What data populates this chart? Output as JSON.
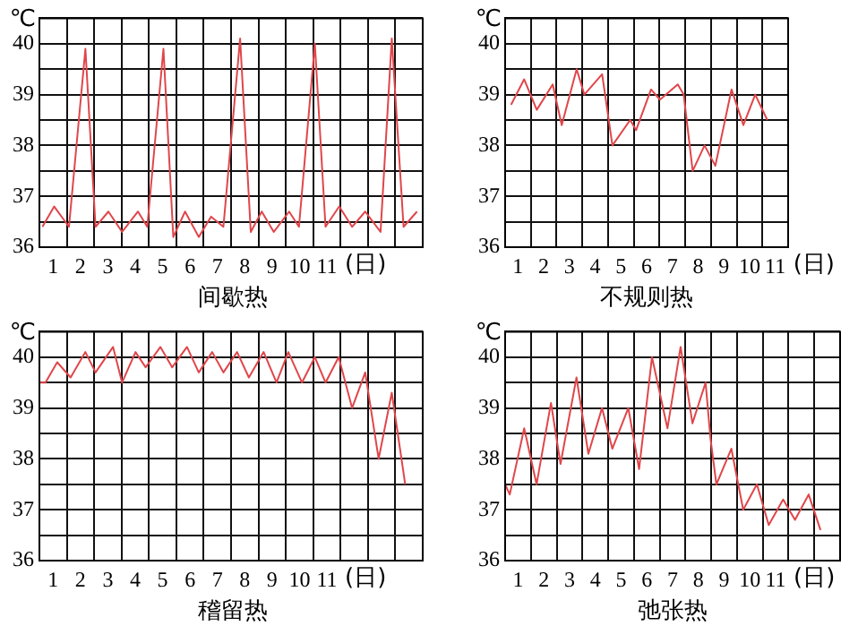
{
  "chart_data": [
    {
      "type": "line",
      "title": "间歇热",
      "xlabel": "(日)",
      "ylabel": "℃",
      "grid": true,
      "legend": false,
      "marker": "none",
      "color": "#e0464a",
      "xlim": [
        0,
        14
      ],
      "ylim": [
        36,
        40.5
      ],
      "xticks": [
        {
          "value": 0,
          "label": null
        },
        {
          "value": 0.5,
          "label": "1"
        },
        {
          "value": 1,
          "label": null
        },
        {
          "value": 1.5,
          "label": "2"
        },
        {
          "value": 2,
          "label": null
        },
        {
          "value": 2.5,
          "label": "3"
        },
        {
          "value": 3,
          "label": null
        },
        {
          "value": 3.5,
          "label": "4"
        },
        {
          "value": 4,
          "label": null
        },
        {
          "value": 4.5,
          "label": "5"
        },
        {
          "value": 5,
          "label": null
        },
        {
          "value": 5.5,
          "label": "6"
        },
        {
          "value": 6,
          "label": null
        },
        {
          "value": 6.5,
          "label": "7"
        },
        {
          "value": 7,
          "label": null
        },
        {
          "value": 7.5,
          "label": "8"
        },
        {
          "value": 8,
          "label": null
        },
        {
          "value": 8.5,
          "label": "9"
        },
        {
          "value": 9,
          "label": null
        },
        {
          "value": 9.5,
          "label": "10"
        },
        {
          "value": 10,
          "label": null
        },
        {
          "value": 10.5,
          "label": "11"
        },
        {
          "value": 11,
          "label": null
        },
        {
          "value": 12,
          "label": null
        },
        {
          "value": 13,
          "label": null
        },
        {
          "value": 14,
          "label": null
        }
      ],
      "yticks": [
        36,
        {
          "value": 36.5,
          "label": null
        },
        37,
        {
          "value": 37.5,
          "label": null
        },
        38,
        {
          "value": 38.5,
          "label": null
        },
        39,
        {
          "value": 39.5,
          "label": null
        },
        40,
        {
          "value": 40.5,
          "label": null
        }
      ],
      "x": [
        0.11,
        0.54,
        1.08,
        1.68,
        2.05,
        2.52,
        3.02,
        3.6,
        3.94,
        4.53,
        4.89,
        5.32,
        5.82,
        6.27,
        6.72,
        7.33,
        7.72,
        8.12,
        8.56,
        9.12,
        9.48,
        10.06,
        10.45,
        10.95,
        11.42,
        11.9,
        12.46,
        12.87,
        13.3,
        13.79
      ],
      "values": [
        36.4,
        36.8,
        36.4,
        39.9,
        36.4,
        36.7,
        36.3,
        36.7,
        36.4,
        39.9,
        36.2,
        36.7,
        36.2,
        36.6,
        36.4,
        40.1,
        36.3,
        36.7,
        36.3,
        36.7,
        36.4,
        40.0,
        36.4,
        36.8,
        36.4,
        36.7,
        36.3,
        40.1,
        36.4,
        36.7
      ]
    },
    {
      "type": "line",
      "title": "不规则热",
      "xlabel": "(日)",
      "ylabel": "℃",
      "grid": true,
      "legend": false,
      "marker": "none",
      "color": "#e0464a",
      "xlim": [
        0,
        11
      ],
      "ylim": [
        36,
        40.5
      ],
      "xticks": [
        {
          "value": 0,
          "label": null
        },
        {
          "value": 0.5,
          "label": "1"
        },
        {
          "value": 1,
          "label": null
        },
        {
          "value": 1.5,
          "label": "2"
        },
        {
          "value": 2,
          "label": null
        },
        {
          "value": 2.5,
          "label": "3"
        },
        {
          "value": 3,
          "label": null
        },
        {
          "value": 3.5,
          "label": "4"
        },
        {
          "value": 4,
          "label": null
        },
        {
          "value": 4.5,
          "label": "5"
        },
        {
          "value": 5,
          "label": null
        },
        {
          "value": 5.5,
          "label": "6"
        },
        {
          "value": 6,
          "label": null
        },
        {
          "value": 6.5,
          "label": "7"
        },
        {
          "value": 7,
          "label": null
        },
        {
          "value": 7.5,
          "label": "8"
        },
        {
          "value": 8,
          "label": null
        },
        {
          "value": 8.5,
          "label": "9"
        },
        {
          "value": 9,
          "label": null
        },
        {
          "value": 9.5,
          "label": "10"
        },
        {
          "value": 10,
          "label": null
        },
        {
          "value": 10.5,
          "label": "11"
        },
        {
          "value": 11,
          "label": null
        }
      ],
      "yticks": [
        36,
        {
          "value": 36.5,
          "label": null
        },
        37,
        {
          "value": 37.5,
          "label": null
        },
        38,
        {
          "value": 38.5,
          "label": null
        },
        39,
        {
          "value": 39.5,
          "label": null
        },
        40,
        {
          "value": 40.5,
          "label": null
        }
      ],
      "x": [
        0.23,
        0.74,
        1.23,
        1.85,
        2.2,
        2.78,
        3.08,
        3.77,
        4.17,
        4.86,
        5.09,
        5.67,
        6.02,
        6.71,
        6.94,
        7.29,
        7.75,
        8.17,
        8.8,
        9.26,
        9.72,
        10.19
      ],
      "values": [
        38.8,
        39.3,
        38.7,
        39.2,
        38.4,
        39.5,
        39.0,
        39.4,
        38.0,
        38.5,
        38.3,
        39.1,
        38.9,
        39.2,
        39.0,
        37.5,
        38.0,
        37.6,
        39.1,
        38.4,
        39.0,
        38.5
      ]
    },
    {
      "type": "line",
      "title": "稽留热",
      "xlabel": "(日)",
      "ylabel": "℃",
      "grid": true,
      "legend": false,
      "marker": "none",
      "color": "#e0464a",
      "xlim": [
        0,
        14
      ],
      "ylim": [
        36,
        40.5
      ],
      "xticks": [
        {
          "value": 0,
          "label": null
        },
        {
          "value": 0.5,
          "label": "1"
        },
        {
          "value": 1,
          "label": null
        },
        {
          "value": 1.5,
          "label": "2"
        },
        {
          "value": 2,
          "label": null
        },
        {
          "value": 2.5,
          "label": "3"
        },
        {
          "value": 3,
          "label": null
        },
        {
          "value": 3.5,
          "label": "4"
        },
        {
          "value": 4,
          "label": null
        },
        {
          "value": 4.5,
          "label": "5"
        },
        {
          "value": 5,
          "label": null
        },
        {
          "value": 5.5,
          "label": "6"
        },
        {
          "value": 6,
          "label": null
        },
        {
          "value": 6.5,
          "label": "7"
        },
        {
          "value": 7,
          "label": null
        },
        {
          "value": 7.5,
          "label": "8"
        },
        {
          "value": 8,
          "label": null
        },
        {
          "value": 8.5,
          "label": "9"
        },
        {
          "value": 9,
          "label": null
        },
        {
          "value": 9.5,
          "label": "10"
        },
        {
          "value": 10,
          "label": null
        },
        {
          "value": 10.5,
          "label": "11"
        },
        {
          "value": 11,
          "label": null
        },
        {
          "value": 12,
          "label": null
        },
        {
          "value": 13,
          "label": null
        },
        {
          "value": 14,
          "label": null
        }
      ],
      "yticks": [
        36,
        {
          "value": 36.5,
          "label": null
        },
        37,
        {
          "value": 37.5,
          "label": null
        },
        38,
        {
          "value": 38.5,
          "label": null
        },
        39,
        {
          "value": 39.5,
          "label": null
        },
        40,
        {
          "value": 40.5,
          "label": null
        }
      ],
      "x": [
        0,
        0.22,
        0.65,
        1.14,
        1.68,
        2.05,
        2.69,
        3.02,
        3.51,
        3.88,
        4.42,
        4.85,
        5.39,
        5.82,
        6.31,
        6.72,
        7.22,
        7.65,
        8.19,
        8.66,
        9.09,
        9.59,
        10.06,
        10.45,
        10.93,
        11.42,
        11.9,
        12.39,
        12.87,
        13.36
      ],
      "values": [
        39.5,
        39.5,
        39.9,
        39.6,
        40.1,
        39.7,
        40.2,
        39.5,
        40.1,
        39.8,
        40.2,
        39.8,
        40.2,
        39.7,
        40.1,
        39.7,
        40.1,
        39.6,
        40.1,
        39.5,
        40.1,
        39.5,
        40.0,
        39.5,
        40.0,
        39.0,
        39.7,
        38.0,
        39.3,
        37.5
      ]
    },
    {
      "type": "line",
      "title": "弛张热",
      "xlabel": "(日)",
      "ylabel": "℃",
      "grid": true,
      "legend": false,
      "marker": "none",
      "color": "#e0464a",
      "xlim": [
        0,
        13
      ],
      "ylim": [
        36,
        40.5
      ],
      "xticks": [
        {
          "value": 0,
          "label": null
        },
        {
          "value": 0.5,
          "label": "1"
        },
        {
          "value": 1,
          "label": null
        },
        {
          "value": 1.5,
          "label": "2"
        },
        {
          "value": 2,
          "label": null
        },
        {
          "value": 2.5,
          "label": "3"
        },
        {
          "value": 3,
          "label": null
        },
        {
          "value": 3.5,
          "label": "4"
        },
        {
          "value": 4,
          "label": null
        },
        {
          "value": 4.5,
          "label": "5"
        },
        {
          "value": 5,
          "label": null
        },
        {
          "value": 5.5,
          "label": "6"
        },
        {
          "value": 6,
          "label": null
        },
        {
          "value": 6.5,
          "label": "7"
        },
        {
          "value": 7,
          "label": null
        },
        {
          "value": 7.5,
          "label": "8"
        },
        {
          "value": 8,
          "label": null
        },
        {
          "value": 8.5,
          "label": "9"
        },
        {
          "value": 9,
          "label": null
        },
        {
          "value": 9.5,
          "label": "10"
        },
        {
          "value": 10,
          "label": null
        },
        {
          "value": 10.5,
          "label": "11"
        },
        {
          "value": 11,
          "label": null
        },
        {
          "value": 12,
          "label": null
        },
        {
          "value": 13,
          "label": null
        }
      ],
      "yticks": [
        36,
        {
          "value": 36.5,
          "label": null
        },
        37,
        {
          "value": 37.5,
          "label": null
        },
        38,
        {
          "value": 38.5,
          "label": null
        },
        39,
        {
          "value": 39.5,
          "label": null
        },
        40,
        {
          "value": 40.5,
          "label": null
        }
      ],
      "x": [
        0,
        0.18,
        0.74,
        1.22,
        1.78,
        2.15,
        2.77,
        3.23,
        3.76,
        4.16,
        4.78,
        5.2,
        5.7,
        6.3,
        6.81,
        7.27,
        7.78,
        7.97,
        8.2,
        8.78,
        9.24,
        9.77,
        10.23,
        10.79,
        11.25,
        11.78,
        12.24
      ],
      "values": [
        37.5,
        37.3,
        38.6,
        37.5,
        39.1,
        37.9,
        39.6,
        38.1,
        39.0,
        38.2,
        39.0,
        37.8,
        40.0,
        38.6,
        40.2,
        38.7,
        39.5,
        38.4,
        37.5,
        38.2,
        37.0,
        37.5,
        36.7,
        37.2,
        36.8,
        37.3,
        36.6
      ]
    }
  ]
}
